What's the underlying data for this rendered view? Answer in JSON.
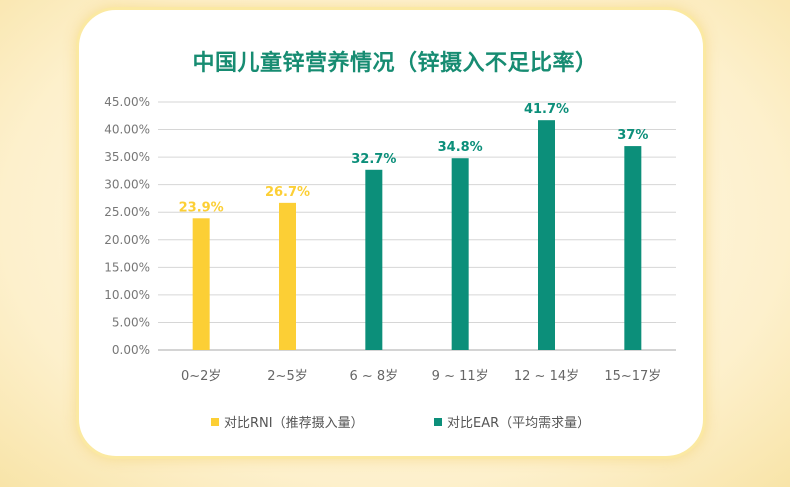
{
  "chart_data": {
    "type": "bar",
    "title": "中国儿童锌营养情况（锌摄入不足比率）",
    "categories": [
      "0~2岁",
      "2~5岁",
      "6 ~ 8岁",
      "9 ~ 11岁",
      "12 ~ 14岁",
      "15~17岁"
    ],
    "values": [
      23.9,
      26.7,
      32.7,
      34.8,
      41.7,
      37
    ],
    "data_labels": [
      "23.9%",
      "26.7%",
      "32.7%",
      "34.8%",
      "41.7%",
      "37%"
    ],
    "series_of_category": [
      0,
      0,
      1,
      1,
      1,
      1
    ],
    "series": [
      {
        "name": "对比RNI（推荐摄入量）",
        "color": "#fccf35"
      },
      {
        "name": "对比EAR（平均需求量）",
        "color": "#0c8f7a"
      }
    ],
    "ylim": [
      0,
      45
    ],
    "yticks": [
      0,
      5,
      10,
      15,
      20,
      25,
      30,
      35,
      40,
      45
    ],
    "ytick_labels": [
      "0.00%",
      "5.00%",
      "10.00%",
      "15.00%",
      "20.00%",
      "25.00%",
      "30.00%",
      "35.00%",
      "40.00%",
      "45.00%"
    ],
    "xlabel": "",
    "ylabel": "",
    "grid": true,
    "legend_position": "bottom"
  }
}
